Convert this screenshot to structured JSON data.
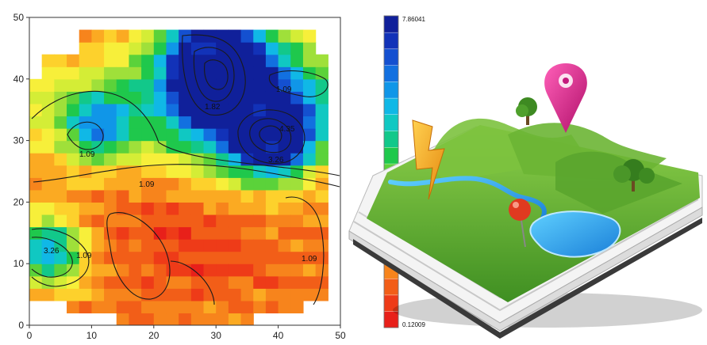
{
  "chart_data": {
    "type": "heatmap",
    "title": "",
    "xlabel": "",
    "ylabel": "",
    "xlim": [
      0,
      50
    ],
    "ylim": [
      0,
      50
    ],
    "x_ticks": [
      "0",
      "10",
      "20",
      "30",
      "40",
      "50"
    ],
    "y_ticks": [
      "0",
      "10",
      "20",
      "30",
      "40",
      "50"
    ],
    "contour_labels": [
      "1.82",
      "4.35",
      "1.09",
      "1.09",
      "3.26",
      "1.09",
      "1.09",
      "1.09",
      "3.26"
    ],
    "colorbar": {
      "max_label": "7.86041",
      "min_label": "0.12009",
      "colors": [
        "#e8201a",
        "#ee3b18",
        "#f25e18",
        "#f7841c",
        "#fbaa22",
        "#fdd12c",
        "#f7ef3a",
        "#d4ed36",
        "#9fe03a",
        "#5bd23a",
        "#1fc84c",
        "#12c88a",
        "#10c8c2",
        "#10b8e6",
        "#1096e8",
        "#1270e0",
        "#1450d0",
        "#1232b8",
        "#10209a"
      ]
    },
    "grid": false
  },
  "illustration": {
    "name": "3D map book with location pin, lightning bolt and trees"
  }
}
